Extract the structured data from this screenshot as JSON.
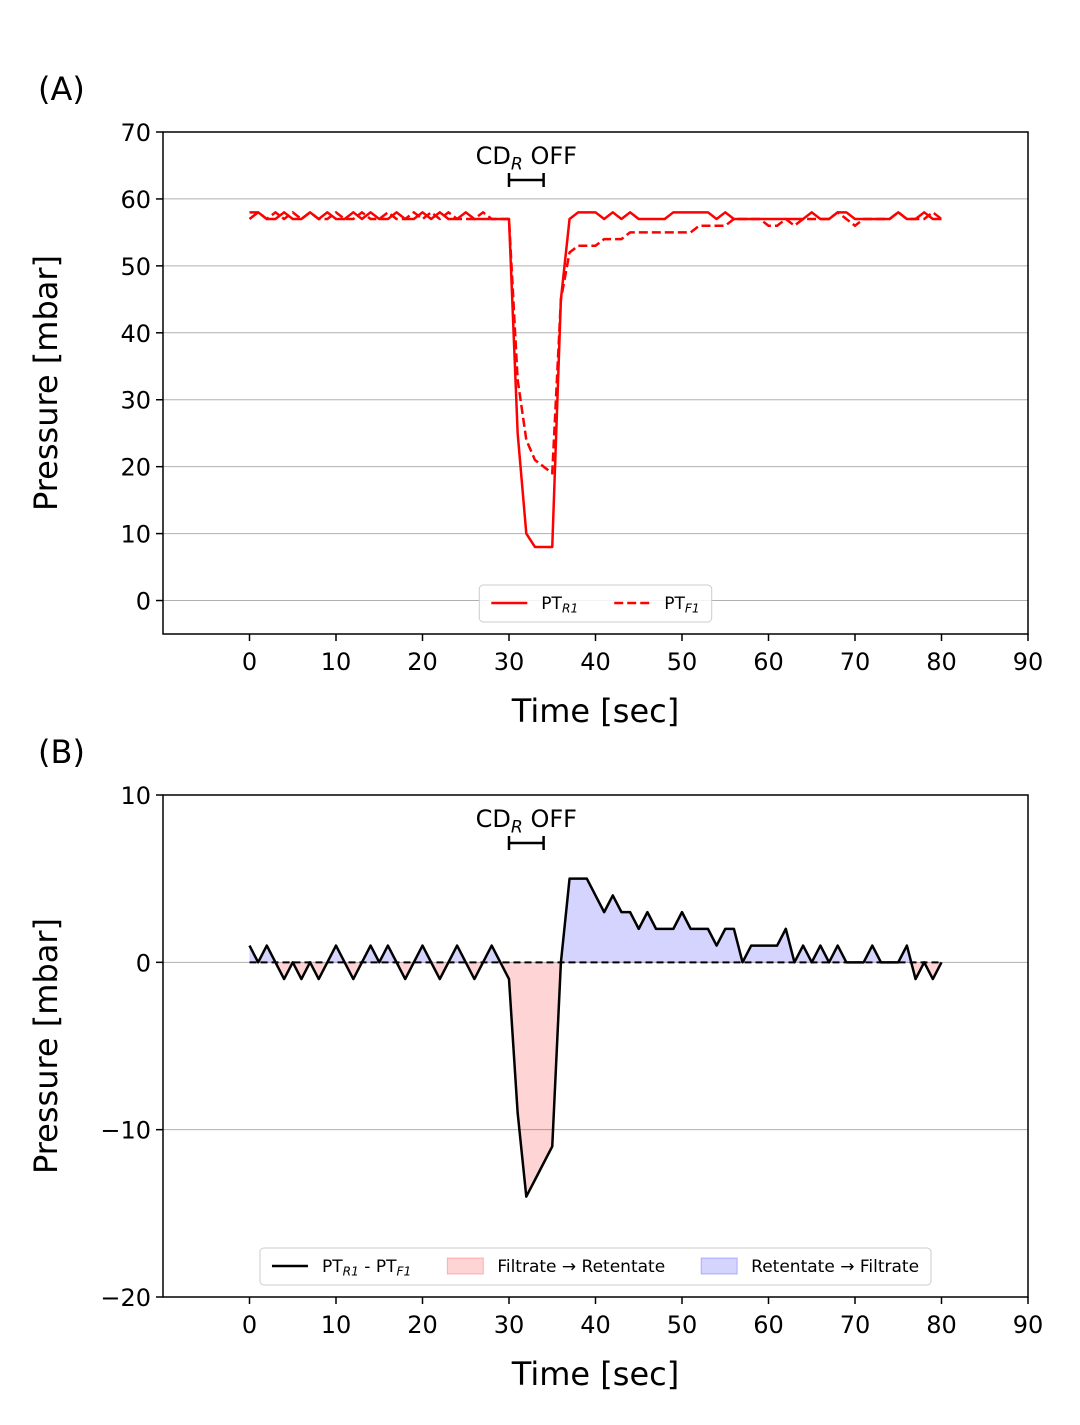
{
  "chart_data": [
    {
      "type": "line",
      "panel_label": "(A)",
      "x_label": "Time [sec]",
      "y_label": "Pressure [mbar]",
      "annotation": {
        "text_parts": [
          "CD",
          "R",
          " OFF"
        ],
        "x_start": 30,
        "x_end": 34
      },
      "x": [
        0,
        1,
        2,
        3,
        4,
        5,
        6,
        7,
        8,
        9,
        10,
        11,
        12,
        13,
        14,
        15,
        16,
        17,
        18,
        19,
        20,
        21,
        22,
        23,
        24,
        25,
        26,
        27,
        28,
        29,
        30,
        31,
        32,
        33,
        34,
        35,
        36,
        37,
        38,
        39,
        40,
        41,
        42,
        43,
        44,
        45,
        46,
        47,
        48,
        49,
        50,
        51,
        52,
        53,
        54,
        55,
        56,
        57,
        58,
        59,
        60,
        61,
        62,
        63,
        64,
        65,
        66,
        67,
        68,
        69,
        70,
        71,
        72,
        73,
        74,
        75,
        76,
        77,
        78,
        79,
        80
      ],
      "series": [
        {
          "name_parts": [
            "PT",
            "R1"
          ],
          "color": "#ff0000",
          "linestyle": "solid",
          "values": [
            57,
            58,
            57,
            57,
            58,
            57,
            57,
            58,
            57,
            58,
            57,
            57,
            58,
            57,
            58,
            57,
            57,
            58,
            57,
            57,
            58,
            57,
            58,
            57,
            57,
            58,
            57,
            57,
            57,
            57,
            57,
            25,
            10,
            8,
            8,
            8,
            45,
            57,
            58,
            58,
            58,
            57,
            58,
            57,
            58,
            57,
            57,
            57,
            57,
            58,
            58,
            58,
            58,
            58,
            57,
            58,
            57,
            57,
            57,
            57,
            57,
            57,
            57,
            57,
            57,
            58,
            57,
            57,
            58,
            58,
            57,
            57,
            57,
            57,
            57,
            58,
            57,
            57,
            58,
            57,
            57
          ]
        },
        {
          "name_parts": [
            "PT",
            "F1"
          ],
          "color": "#ff0000",
          "linestyle": "dashed",
          "values": [
            58,
            58,
            57,
            58,
            57,
            58,
            57,
            58,
            57,
            57,
            58,
            57,
            57,
            58,
            57,
            57,
            58,
            57,
            57,
            58,
            57,
            58,
            57,
            58,
            57,
            57,
            57,
            58,
            57,
            57,
            57,
            33,
            24,
            21,
            20,
            19,
            45,
            52,
            53,
            53,
            53,
            54,
            54,
            54,
            55,
            55,
            55,
            55,
            55,
            55,
            55,
            55,
            56,
            56,
            56,
            56,
            57,
            57,
            57,
            57,
            56,
            56,
            57,
            56,
            57,
            57,
            57,
            57,
            58,
            57,
            56,
            57,
            57,
            57,
            57,
            58,
            57,
            57,
            57,
            58,
            57
          ]
        }
      ],
      "xlim": [
        -10,
        90
      ],
      "xticks": [
        0,
        10,
        20,
        30,
        40,
        50,
        60,
        70,
        80,
        90
      ],
      "ylim": [
        -5,
        70
      ],
      "yticks": [
        0,
        10,
        20,
        30,
        40,
        50,
        60,
        70
      ],
      "grid": true,
      "legend": "lower center"
    },
    {
      "type": "line",
      "panel_label": "(B)",
      "x_label": "Time [sec]",
      "y_label": "Pressure [mbar]",
      "annotation": {
        "text_parts": [
          "CD",
          "R",
          " OFF"
        ],
        "x_start": 30,
        "x_end": 34
      },
      "x": [
        0,
        1,
        2,
        3,
        4,
        5,
        6,
        7,
        8,
        9,
        10,
        11,
        12,
        13,
        14,
        15,
        16,
        17,
        18,
        19,
        20,
        21,
        22,
        23,
        24,
        25,
        26,
        27,
        28,
        29,
        30,
        31,
        32,
        33,
        34,
        35,
        36,
        37,
        38,
        39,
        40,
        41,
        42,
        43,
        44,
        45,
        46,
        47,
        48,
        49,
        50,
        51,
        52,
        53,
        54,
        55,
        56,
        57,
        58,
        59,
        60,
        61,
        62,
        63,
        64,
        65,
        66,
        67,
        68,
        69,
        70,
        71,
        72,
        73,
        74,
        75,
        76,
        77,
        78,
        79,
        80
      ],
      "series": [
        {
          "name_parts": [
            "PT",
            "R1",
            " - PT",
            "F1"
          ],
          "color": "#000000",
          "linestyle": "solid",
          "values": [
            1,
            0,
            1,
            0,
            -1,
            0,
            -1,
            0,
            -1,
            0,
            1,
            0,
            -1,
            0,
            1,
            0,
            1,
            0,
            -1,
            0,
            1,
            0,
            -1,
            0,
            1,
            0,
            -1,
            0,
            1,
            0,
            -1,
            -9,
            -14,
            -13,
            -12,
            -11,
            0,
            5,
            5,
            5,
            4,
            3,
            4,
            3,
            3,
            2,
            3,
            2,
            2,
            2,
            3,
            2,
            2,
            2,
            1,
            2,
            2,
            0,
            1,
            1,
            1,
            1,
            2,
            0,
            1,
            0,
            1,
            0,
            1,
            0,
            0,
            0,
            1,
            0,
            0,
            0,
            1,
            -1,
            0,
            -1,
            0
          ]
        }
      ],
      "fills": [
        {
          "name": "Filtrate → Retentate",
          "color": "#ff0000",
          "alpha": 0.17
        },
        {
          "name": "Retentate → Filtrate",
          "color": "#0000ff",
          "alpha": 0.17
        }
      ],
      "xlim": [
        -10,
        90
      ],
      "xticks": [
        0,
        10,
        20,
        30,
        40,
        50,
        60,
        70,
        80,
        90
      ],
      "ylim": [
        -20,
        10
      ],
      "yticks": [
        {
          "value": -20,
          "label": "−20"
        },
        {
          "value": -10,
          "label": "−10"
        },
        0,
        10
      ],
      "grid": true,
      "legend": "lower center"
    }
  ]
}
